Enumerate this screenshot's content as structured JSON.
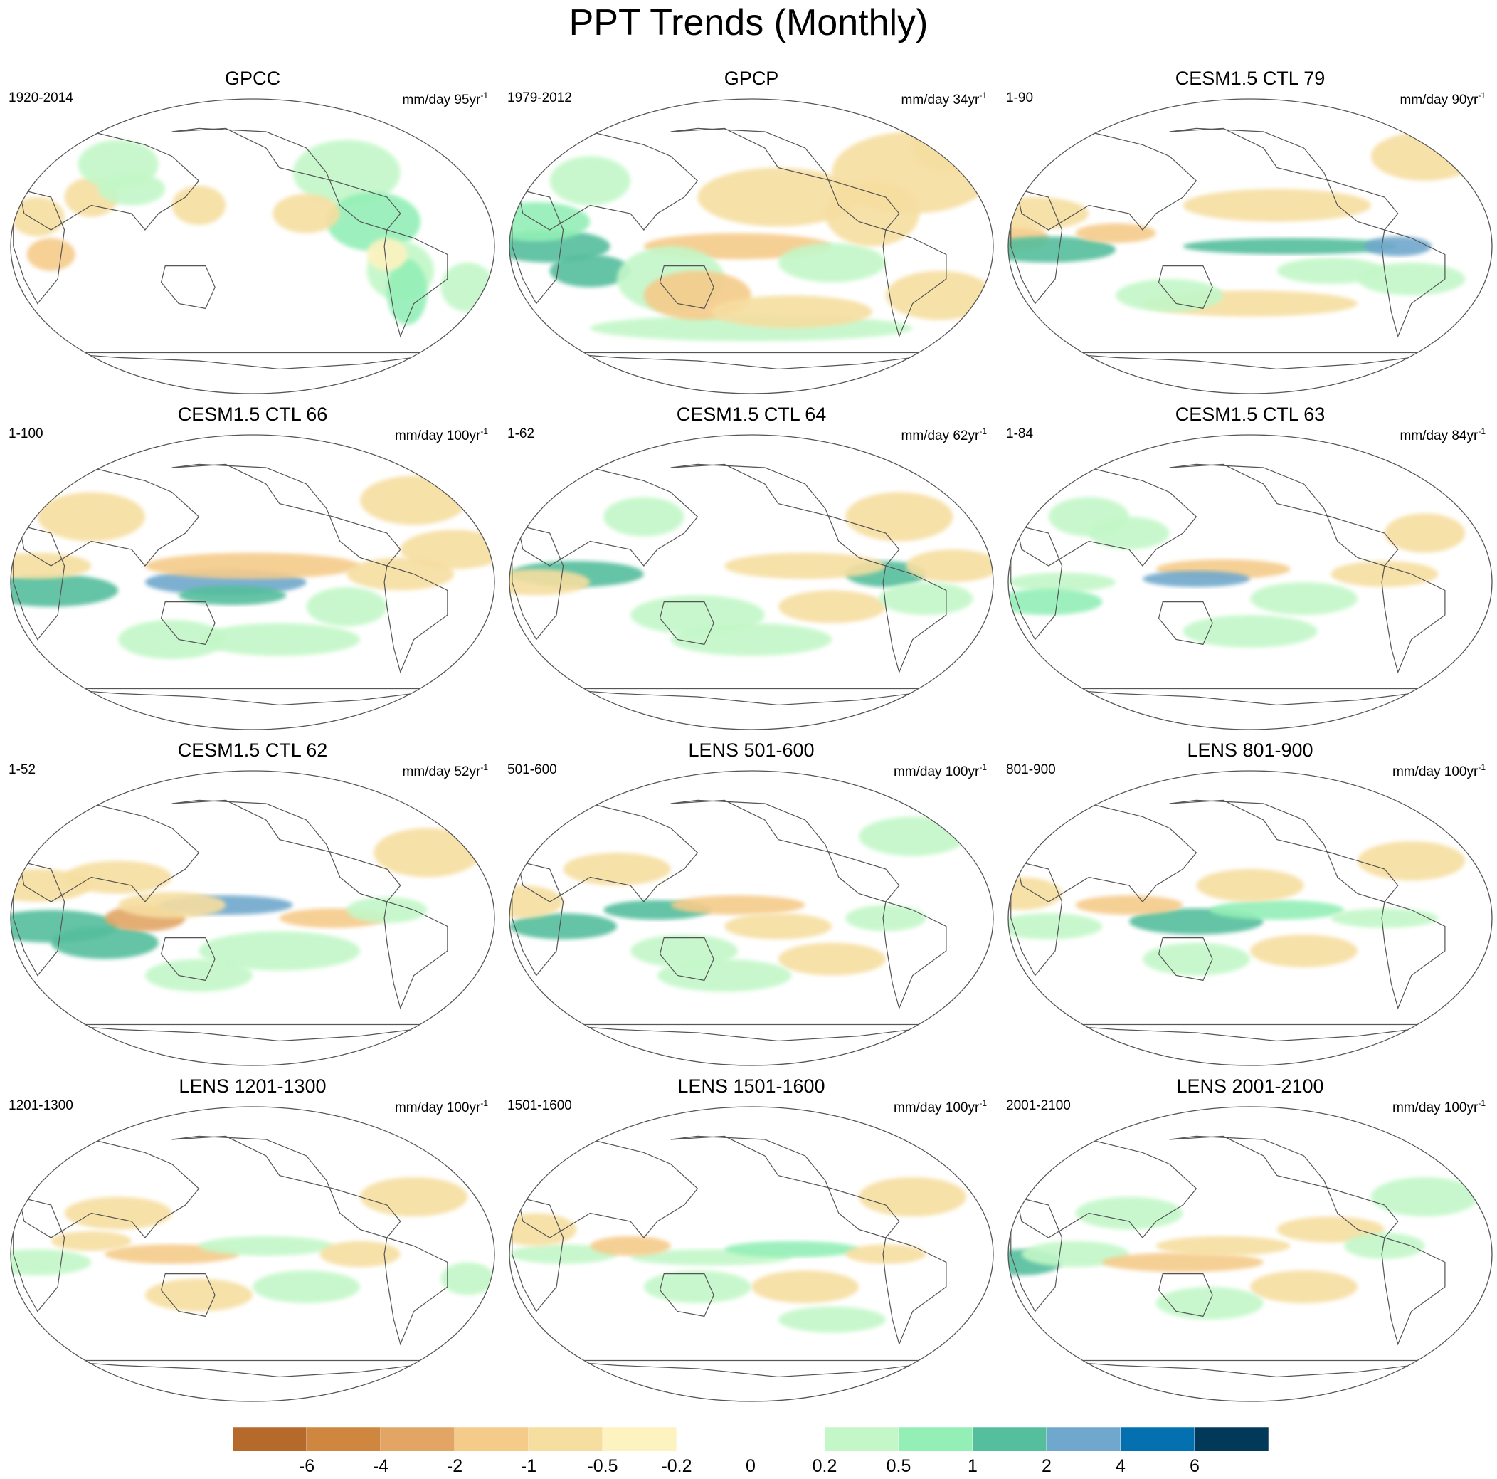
{
  "title": "PPT Trends (Monthly)",
  "panels": [
    {
      "title": "GPCC",
      "range": "1920-2014",
      "units": "mm/day 95yr",
      "units_sup": "-1",
      "pattern": "obs_land"
    },
    {
      "title": "GPCP",
      "range": "1979-2012",
      "units": "mm/day 34yr",
      "units_sup": "-1",
      "pattern": "gpcp"
    },
    {
      "title": "CESM1.5 CTL 79",
      "range": "1-90",
      "units": "mm/day 90yr",
      "units_sup": "-1",
      "pattern": "ctl_strong"
    },
    {
      "title": "CESM1.5 CTL 66",
      "range": "1-100",
      "units": "mm/day 100yr",
      "units_sup": "-1",
      "pattern": "ctl_spcz"
    },
    {
      "title": "CESM1.5 CTL 64",
      "range": "1-62",
      "units": "mm/day 62yr",
      "units_sup": "-1",
      "pattern": "ctl_mid"
    },
    {
      "title": "CESM1.5 CTL 63",
      "range": "1-84",
      "units": "mm/day 84yr",
      "units_sup": "-1",
      "pattern": "ctl_weak"
    },
    {
      "title": "CESM1.5 CTL 62",
      "range": "1-52",
      "units": "mm/day 52yr",
      "units_sup": "-1",
      "pattern": "ctl_io"
    },
    {
      "title": "LENS 501-600",
      "range": "501-600",
      "units": "mm/day 100yr",
      "units_sup": "-1",
      "pattern": "lens_a"
    },
    {
      "title": "LENS 801-900",
      "range": "801-900",
      "units": "mm/day 100yr",
      "units_sup": "-1",
      "pattern": "lens_b"
    },
    {
      "title": "LENS 1201-1300",
      "range": "1201-1300",
      "units": "mm/day 100yr",
      "units_sup": "-1",
      "pattern": "lens_c"
    },
    {
      "title": "LENS 1501-1600",
      "range": "1501-1600",
      "units": "mm/day 100yr",
      "units_sup": "-1",
      "pattern": "lens_d"
    },
    {
      "title": "LENS 2001-2100",
      "range": "2001-2100",
      "units": "mm/day 100yr",
      "units_sup": "-1",
      "pattern": "lens_e"
    }
  ],
  "colorbar": {
    "labels": [
      "-6",
      "-4",
      "-2",
      "-1",
      "-0.5",
      "-0.2",
      "0",
      "0.2",
      "0.5",
      "1",
      "2",
      "4",
      "6"
    ],
    "colors": [
      "#b5692a",
      "#cf863e",
      "#e2a565",
      "#f5cb8a",
      "#f6dea0",
      "#fdf3c0",
      "#ffffff",
      "#ffffff",
      "#c3f7c8",
      "#93efb6",
      "#55be9c",
      "#6fa8cc",
      "#0570b0",
      "#023858"
    ]
  }
}
